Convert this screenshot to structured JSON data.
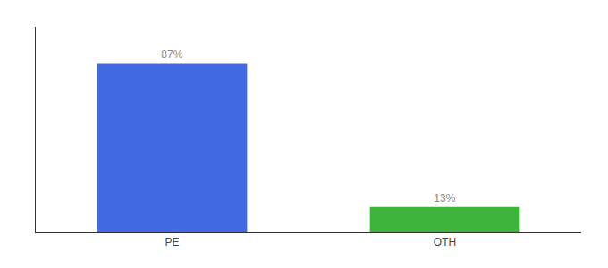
{
  "chart_data": {
    "type": "bar",
    "categories": [
      "PE",
      "OTH"
    ],
    "values": [
      87,
      13
    ],
    "value_labels": [
      "87%",
      "13%"
    ],
    "colors": [
      "#4169e1",
      "#3cb43c"
    ],
    "data_labels": true,
    "ylim": [
      0,
      106.14
    ],
    "tick_labels": "x",
    "grid": false
  }
}
